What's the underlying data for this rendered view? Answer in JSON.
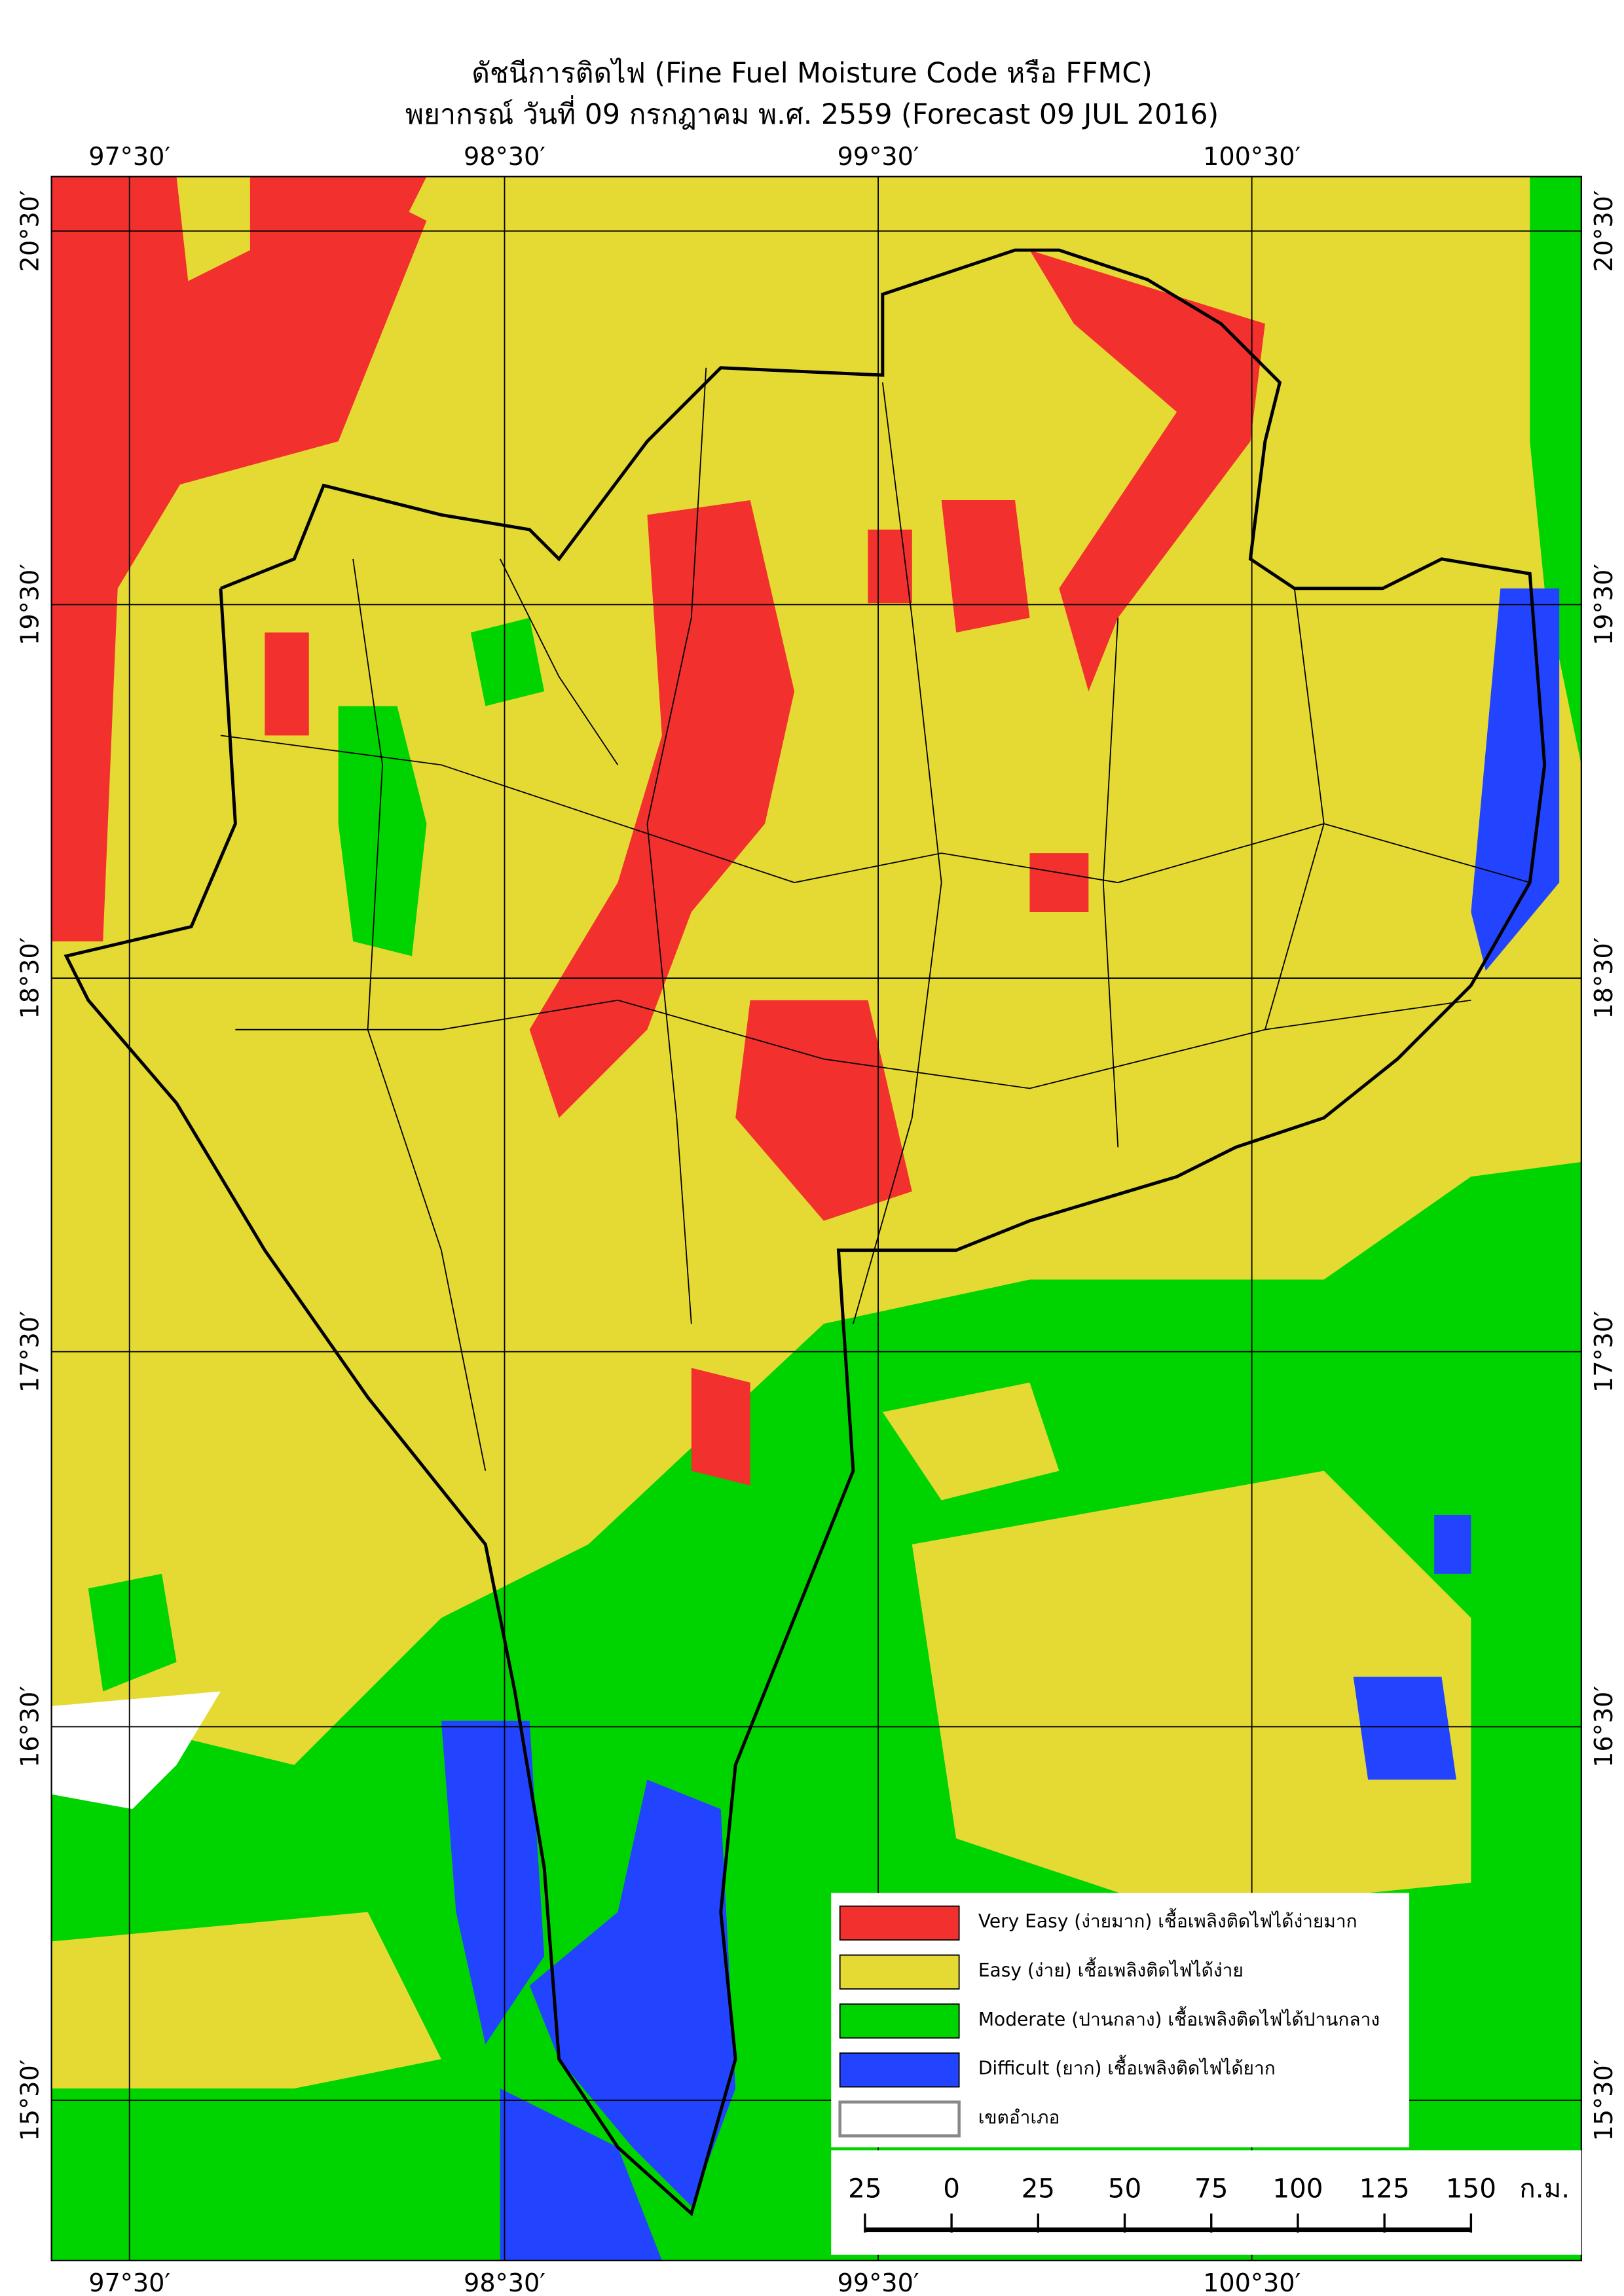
{
  "title": "ดัชนีการติดไฟ (Fine Fuel Moisture Code หรือ FFMC)",
  "subtitle": "พยากรณ์ วันที่ 09 กรกฎาคม พ.ศ. 2559 (Forecast 09 JUL 2016)",
  "longitude_labels": [
    "97°30′",
    "98°30′",
    "99°30′",
    "100°30′"
  ],
  "latitude_labels": [
    "20°30′",
    "19°30′",
    "18°30′",
    "17°30′",
    "16°30′",
    "15°30′"
  ],
  "legend": [
    {
      "label": "Very Easy (ง่ายมาก) เชื้อเพลิงติดไฟได้ง่ายมาก",
      "color": "#f2302e"
    },
    {
      "label": "Easy (ง่าย) เชื้อเพลิงติดไฟได้ง่าย",
      "color": "#e5da33"
    },
    {
      "label": "Moderate (ปานกลาง) เชื้อเพลิงติดไฟได้ปานกลาง",
      "color": "#00d400"
    },
    {
      "label": "Difficult (ยาก) เชื้อเพลิงติดไฟได้ยาก",
      "color": "#2244ff"
    },
    {
      "label": "เขตอำเภอ",
      "color": "#ffffff"
    }
  ],
  "scale_bar": {
    "labels": [
      25,
      0,
      25,
      50,
      75,
      100,
      125,
      150
    ],
    "unit": "ก.ม."
  }
}
